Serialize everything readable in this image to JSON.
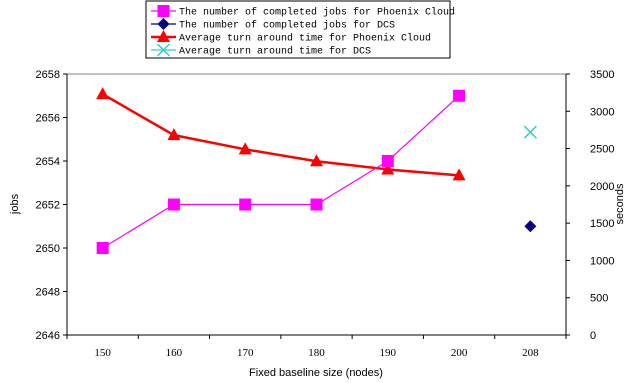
{
  "chart_data": {
    "type": "line",
    "x_categories": [
      "150",
      "160",
      "170",
      "180",
      "190",
      "200",
      "208"
    ],
    "xlabel": "Fixed baseline size (nodes)",
    "ylabel_left": "jobs",
    "ylabel_right": "seconds",
    "ylim_left": [
      2646,
      2658
    ],
    "ylim_right": [
      0,
      3500
    ],
    "yticks_left": [
      "2646",
      "2648",
      "2650",
      "2652",
      "2654",
      "2656",
      "2658"
    ],
    "yticks_right": [
      "0",
      "500",
      "1000",
      "1500",
      "2000",
      "2500",
      "3000",
      "3500"
    ],
    "grid": false,
    "legend_position": "top-center",
    "series": [
      {
        "name": "The number of completed jobs for Phoenix Cloud",
        "axis": "left",
        "color": "#ff00ff",
        "marker": "square",
        "line": true,
        "x": [
          "150",
          "160",
          "170",
          "180",
          "190",
          "200"
        ],
        "values": [
          2650,
          2652,
          2652,
          2652,
          2654,
          2657
        ]
      },
      {
        "name": "The number of completed jobs for DCS",
        "axis": "left",
        "color": "#000080",
        "marker": "diamond",
        "line": false,
        "x": [
          "208"
        ],
        "values": [
          2651
        ]
      },
      {
        "name": "Average turn around time for Phoenix Cloud",
        "axis": "right",
        "color": "#ff0000",
        "marker": "triangle",
        "line": true,
        "x": [
          "150",
          "160",
          "170",
          "180",
          "190",
          "200"
        ],
        "values": [
          3230,
          2680,
          2490,
          2330,
          2220,
          2140
        ]
      },
      {
        "name": "Average turn around time for DCS",
        "axis": "right",
        "color": "#33cccc",
        "marker": "x",
        "line": false,
        "x": [
          "208"
        ],
        "values": [
          2720
        ]
      }
    ]
  }
}
